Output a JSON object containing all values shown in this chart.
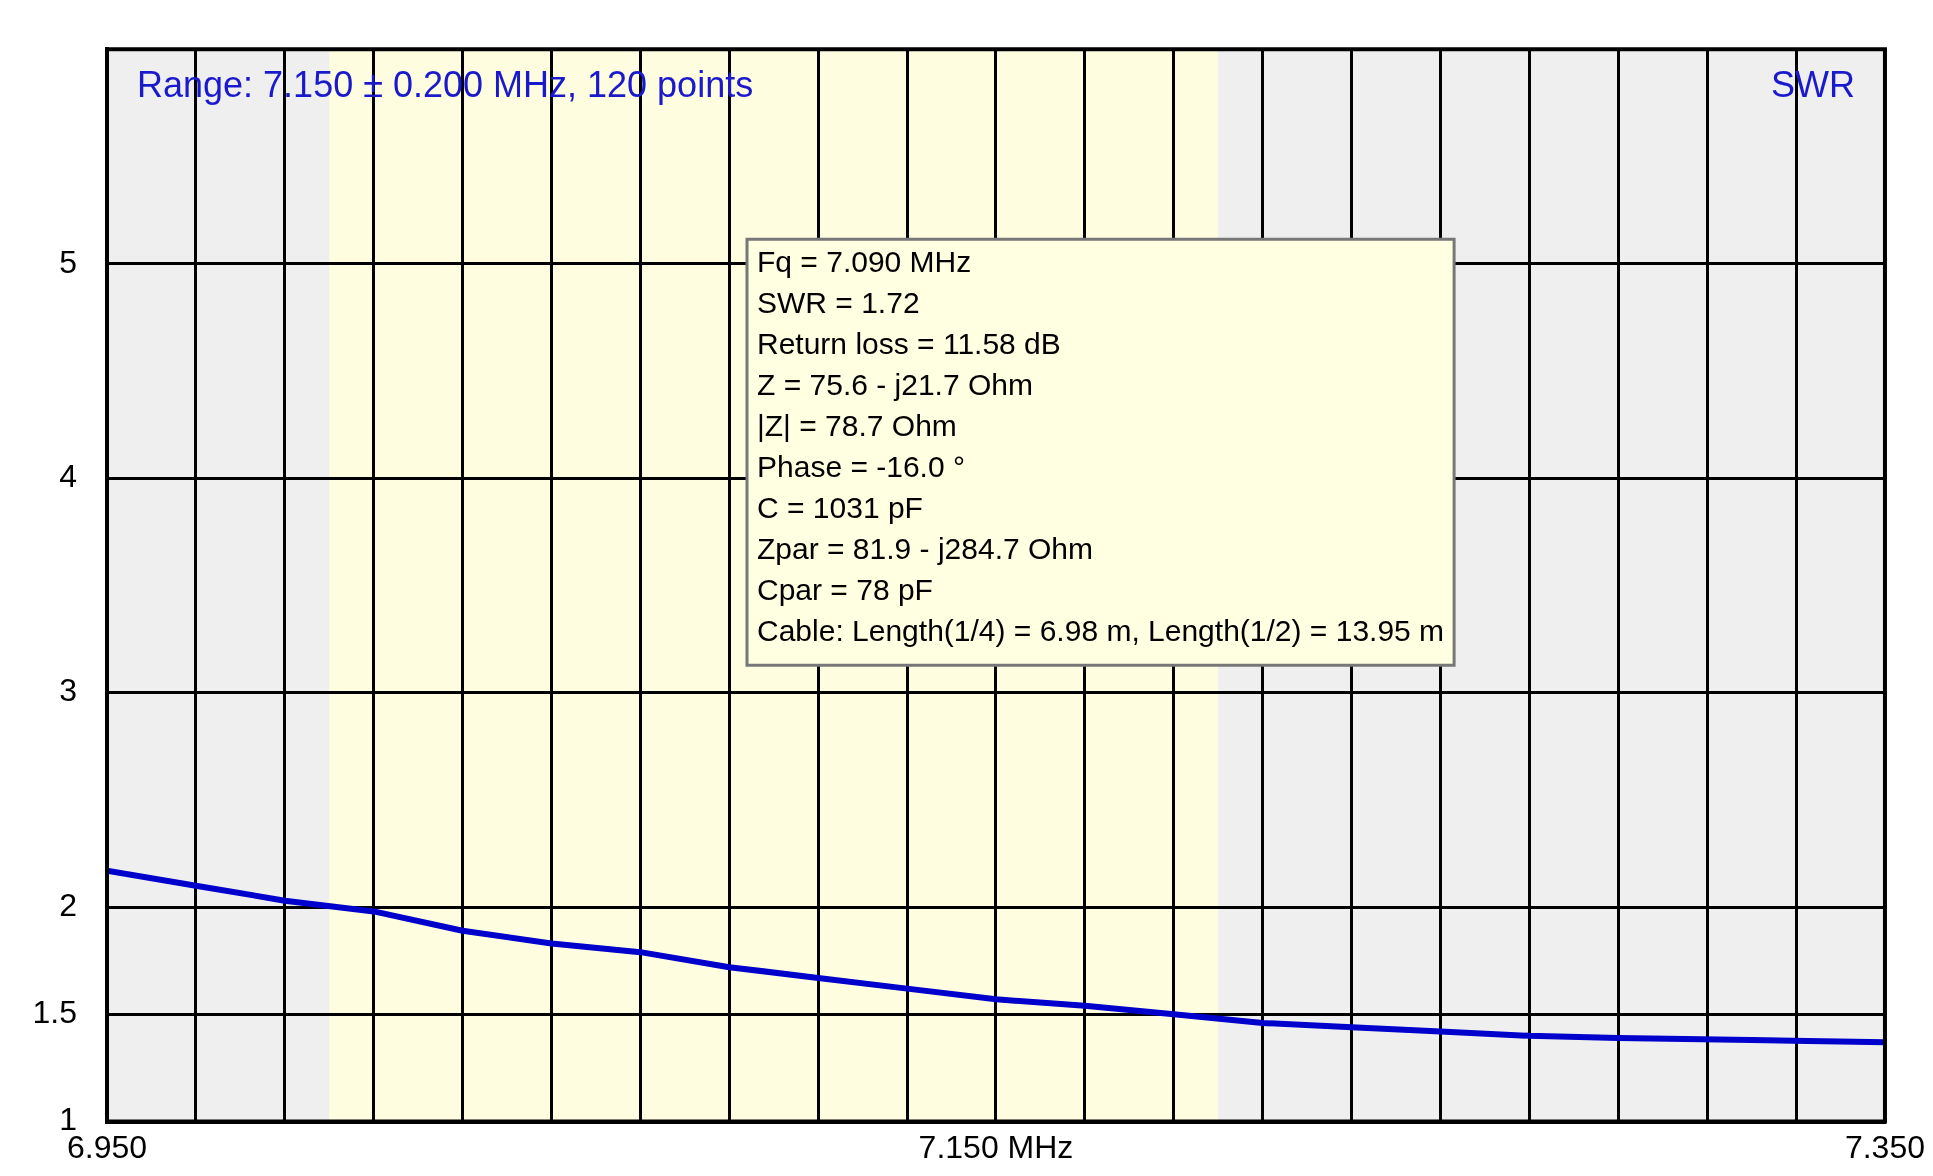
{
  "chart_data": {
    "type": "line",
    "title": "Range: 7.150 ± 0.200 MHz, 120 points",
    "ylabel": "SWR",
    "x": [
      6.95,
      6.97,
      6.99,
      7.01,
      7.03,
      7.05,
      7.07,
      7.09,
      7.11,
      7.13,
      7.15,
      7.17,
      7.19,
      7.21,
      7.23,
      7.25,
      7.27,
      7.29,
      7.32,
      7.35
    ],
    "series": [
      {
        "color": "#0000cc",
        "values": [
          2.17,
          2.1,
          2.03,
          1.98,
          1.89,
          1.83,
          1.79,
          1.72,
          1.67,
          1.62,
          1.57,
          1.54,
          1.5,
          1.46,
          1.44,
          1.42,
          1.4,
          1.39,
          1.38,
          1.37
        ]
      }
    ],
    "xlim": [
      6.95,
      7.35
    ],
    "xticks": [
      {
        "value": 6.95,
        "label": "6.950"
      },
      {
        "value": 6.97,
        "label": null
      },
      {
        "value": 6.99,
        "label": null
      },
      {
        "value": 7.01,
        "label": null
      },
      {
        "value": 7.03,
        "label": null
      },
      {
        "value": 7.05,
        "label": null
      },
      {
        "value": 7.07,
        "label": null
      },
      {
        "value": 7.09,
        "label": null
      },
      {
        "value": 7.11,
        "label": null
      },
      {
        "value": 7.13,
        "label": null
      },
      {
        "value": 7.15,
        "label": "7.150 MHz"
      },
      {
        "value": 7.17,
        "label": null
      },
      {
        "value": 7.19,
        "label": null
      },
      {
        "value": 7.21,
        "label": null
      },
      {
        "value": 7.23,
        "label": null
      },
      {
        "value": 7.25,
        "label": null
      },
      {
        "value": 7.27,
        "label": null
      },
      {
        "value": 7.29,
        "label": null
      },
      {
        "value": 7.31,
        "label": null
      },
      {
        "value": 7.33,
        "label": null
      },
      {
        "value": 7.35,
        "label": "7.350"
      }
    ],
    "ylim": [
      1,
      6
    ],
    "yticks": [
      1,
      1.5,
      2,
      3,
      4,
      5
    ],
    "bands": [
      {
        "axis": "x",
        "from": 7.0,
        "to": 7.2,
        "color": "#fffde0"
      }
    ],
    "annotations": [
      "Fq = 7.090 MHz",
      "SWR = 1.72",
      "Return loss = 11.58 dB",
      "Z = 75.6 - j21.7 Ohm",
      "|Z| = 78.7 Ohm",
      "Phase = -16.0 °",
      "C = 1031 pF",
      "Zpar = 81.9 - j284.7 Ohm",
      "Cpar = 78 pF",
      "Cable: Length(1/4) = 6.98 m, Length(1/2) = 13.95 m"
    ],
    "grid": true,
    "legend": false,
    "marker": "none",
    "line_style": "solid"
  }
}
